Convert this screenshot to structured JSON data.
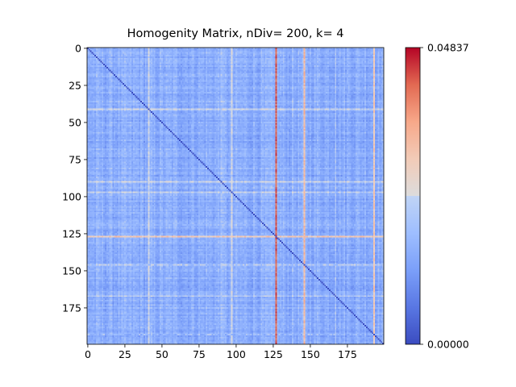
{
  "chart_data": {
    "type": "heatmap",
    "title": "Homogenity Matrix, nDiv= 200, k= 4",
    "n": 200,
    "x_ticks": [
      0,
      25,
      50,
      75,
      100,
      125,
      150,
      175
    ],
    "y_ticks": [
      0,
      25,
      50,
      75,
      100,
      125,
      150,
      175
    ],
    "xlim": [
      -0.5,
      199.5
    ],
    "ylim": [
      199.5,
      -0.5
    ],
    "colormap": "coolwarm",
    "vmin": 0.0,
    "vmax": 0.04837,
    "colorbar_ticks": [
      {
        "value": 0.0,
        "label": "0.00000"
      },
      {
        "value": 0.04837,
        "label": "0.04837"
      }
    ],
    "diagonal_value": 0.0,
    "background_level": 0.015,
    "highlight_lines": [
      {
        "index": 127,
        "value": 0.046
      },
      {
        "index": 146,
        "value": 0.036
      },
      {
        "index": 193,
        "value": 0.033
      }
    ],
    "light_bands": [
      90,
      97,
      41,
      167
    ],
    "grid": false,
    "colors": {
      "low": "#3b4cc0",
      "mid": "#dddddd",
      "high": "#b40426",
      "background": "#ffffff"
    }
  }
}
